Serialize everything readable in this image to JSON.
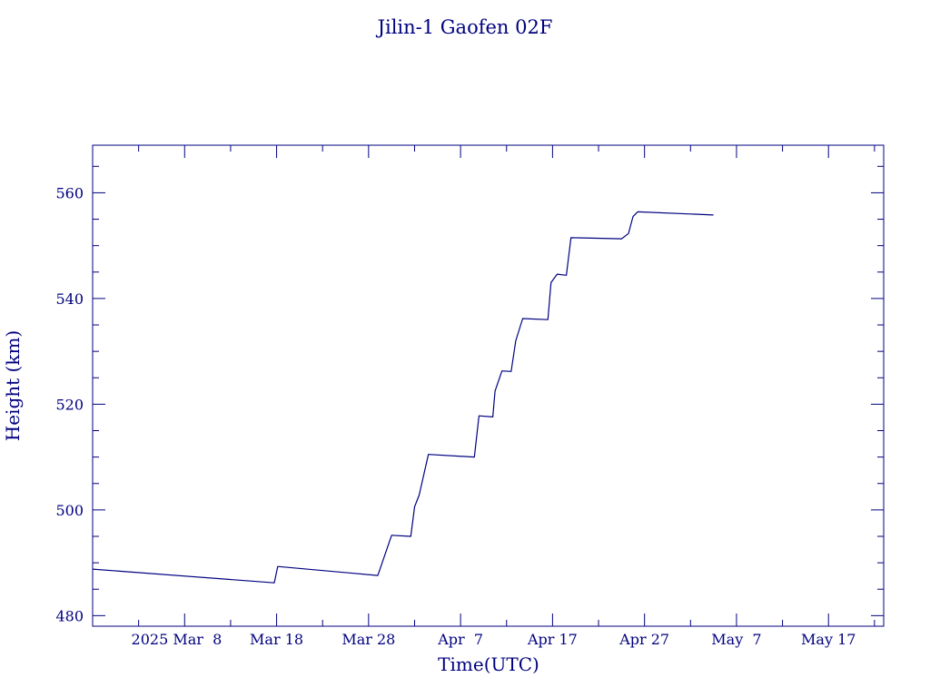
{
  "chart_data": {
    "type": "line",
    "title": "Jilin-1 Gaofen 02F",
    "xlabel": "Time(UTC)",
    "ylabel": "Height (km)",
    "x_ticks": [
      {
        "date": "2025-03-08",
        "label": "2025 Mar  8"
      },
      {
        "date": "2025-03-18",
        "label": "Mar 18"
      },
      {
        "date": "2025-03-28",
        "label": "Mar 28"
      },
      {
        "date": "2025-04-07",
        "label": "Apr  7"
      },
      {
        "date": "2025-04-17",
        "label": "Apr 17"
      },
      {
        "date": "2025-04-27",
        "label": "Apr 27"
      },
      {
        "date": "2025-05-07",
        "label": "May  7"
      },
      {
        "date": "2025-05-17",
        "label": "May 17"
      }
    ],
    "y_ticks": [
      480,
      500,
      520,
      540,
      560
    ],
    "xlim": [
      "2025-02-26T00:00",
      "2025-05-23T00:00"
    ],
    "ylim": [
      478,
      569
    ],
    "color": "#000080",
    "series": [
      {
        "points": [
          [
            "2025-02-26T00:00",
            488.8
          ],
          [
            "2025-03-17T18:00",
            486.2
          ],
          [
            "2025-03-18T03:00",
            489.3
          ],
          [
            "2025-03-29T00:00",
            487.6
          ],
          [
            "2025-03-30T12:00",
            495.2
          ],
          [
            "2025-04-01T14:00",
            495.0
          ],
          [
            "2025-04-02T00:00",
            500.6
          ],
          [
            "2025-04-02T12:00",
            502.8
          ],
          [
            "2025-04-03T12:00",
            510.5
          ],
          [
            "2025-04-08T12:00",
            510.0
          ],
          [
            "2025-04-09T00:00",
            517.8
          ],
          [
            "2025-04-10T12:00",
            517.6
          ],
          [
            "2025-04-10T18:00",
            522.5
          ],
          [
            "2025-04-11T12:00",
            526.3
          ],
          [
            "2025-04-12T12:00",
            526.2
          ],
          [
            "2025-04-13T00:00",
            532.0
          ],
          [
            "2025-04-13T18:00",
            536.2
          ],
          [
            "2025-04-16T12:00",
            536.0
          ],
          [
            "2025-04-16T20:00",
            543.0
          ],
          [
            "2025-04-17T12:00",
            544.6
          ],
          [
            "2025-04-18T12:00",
            544.4
          ],
          [
            "2025-04-19T00:00",
            551.5
          ],
          [
            "2025-04-24T12:00",
            551.3
          ],
          [
            "2025-04-25T06:00",
            552.3
          ],
          [
            "2025-04-25T18:00",
            555.5
          ],
          [
            "2025-04-26T06:00",
            556.4
          ],
          [
            "2025-05-04T12:00",
            555.8
          ]
        ]
      }
    ]
  }
}
